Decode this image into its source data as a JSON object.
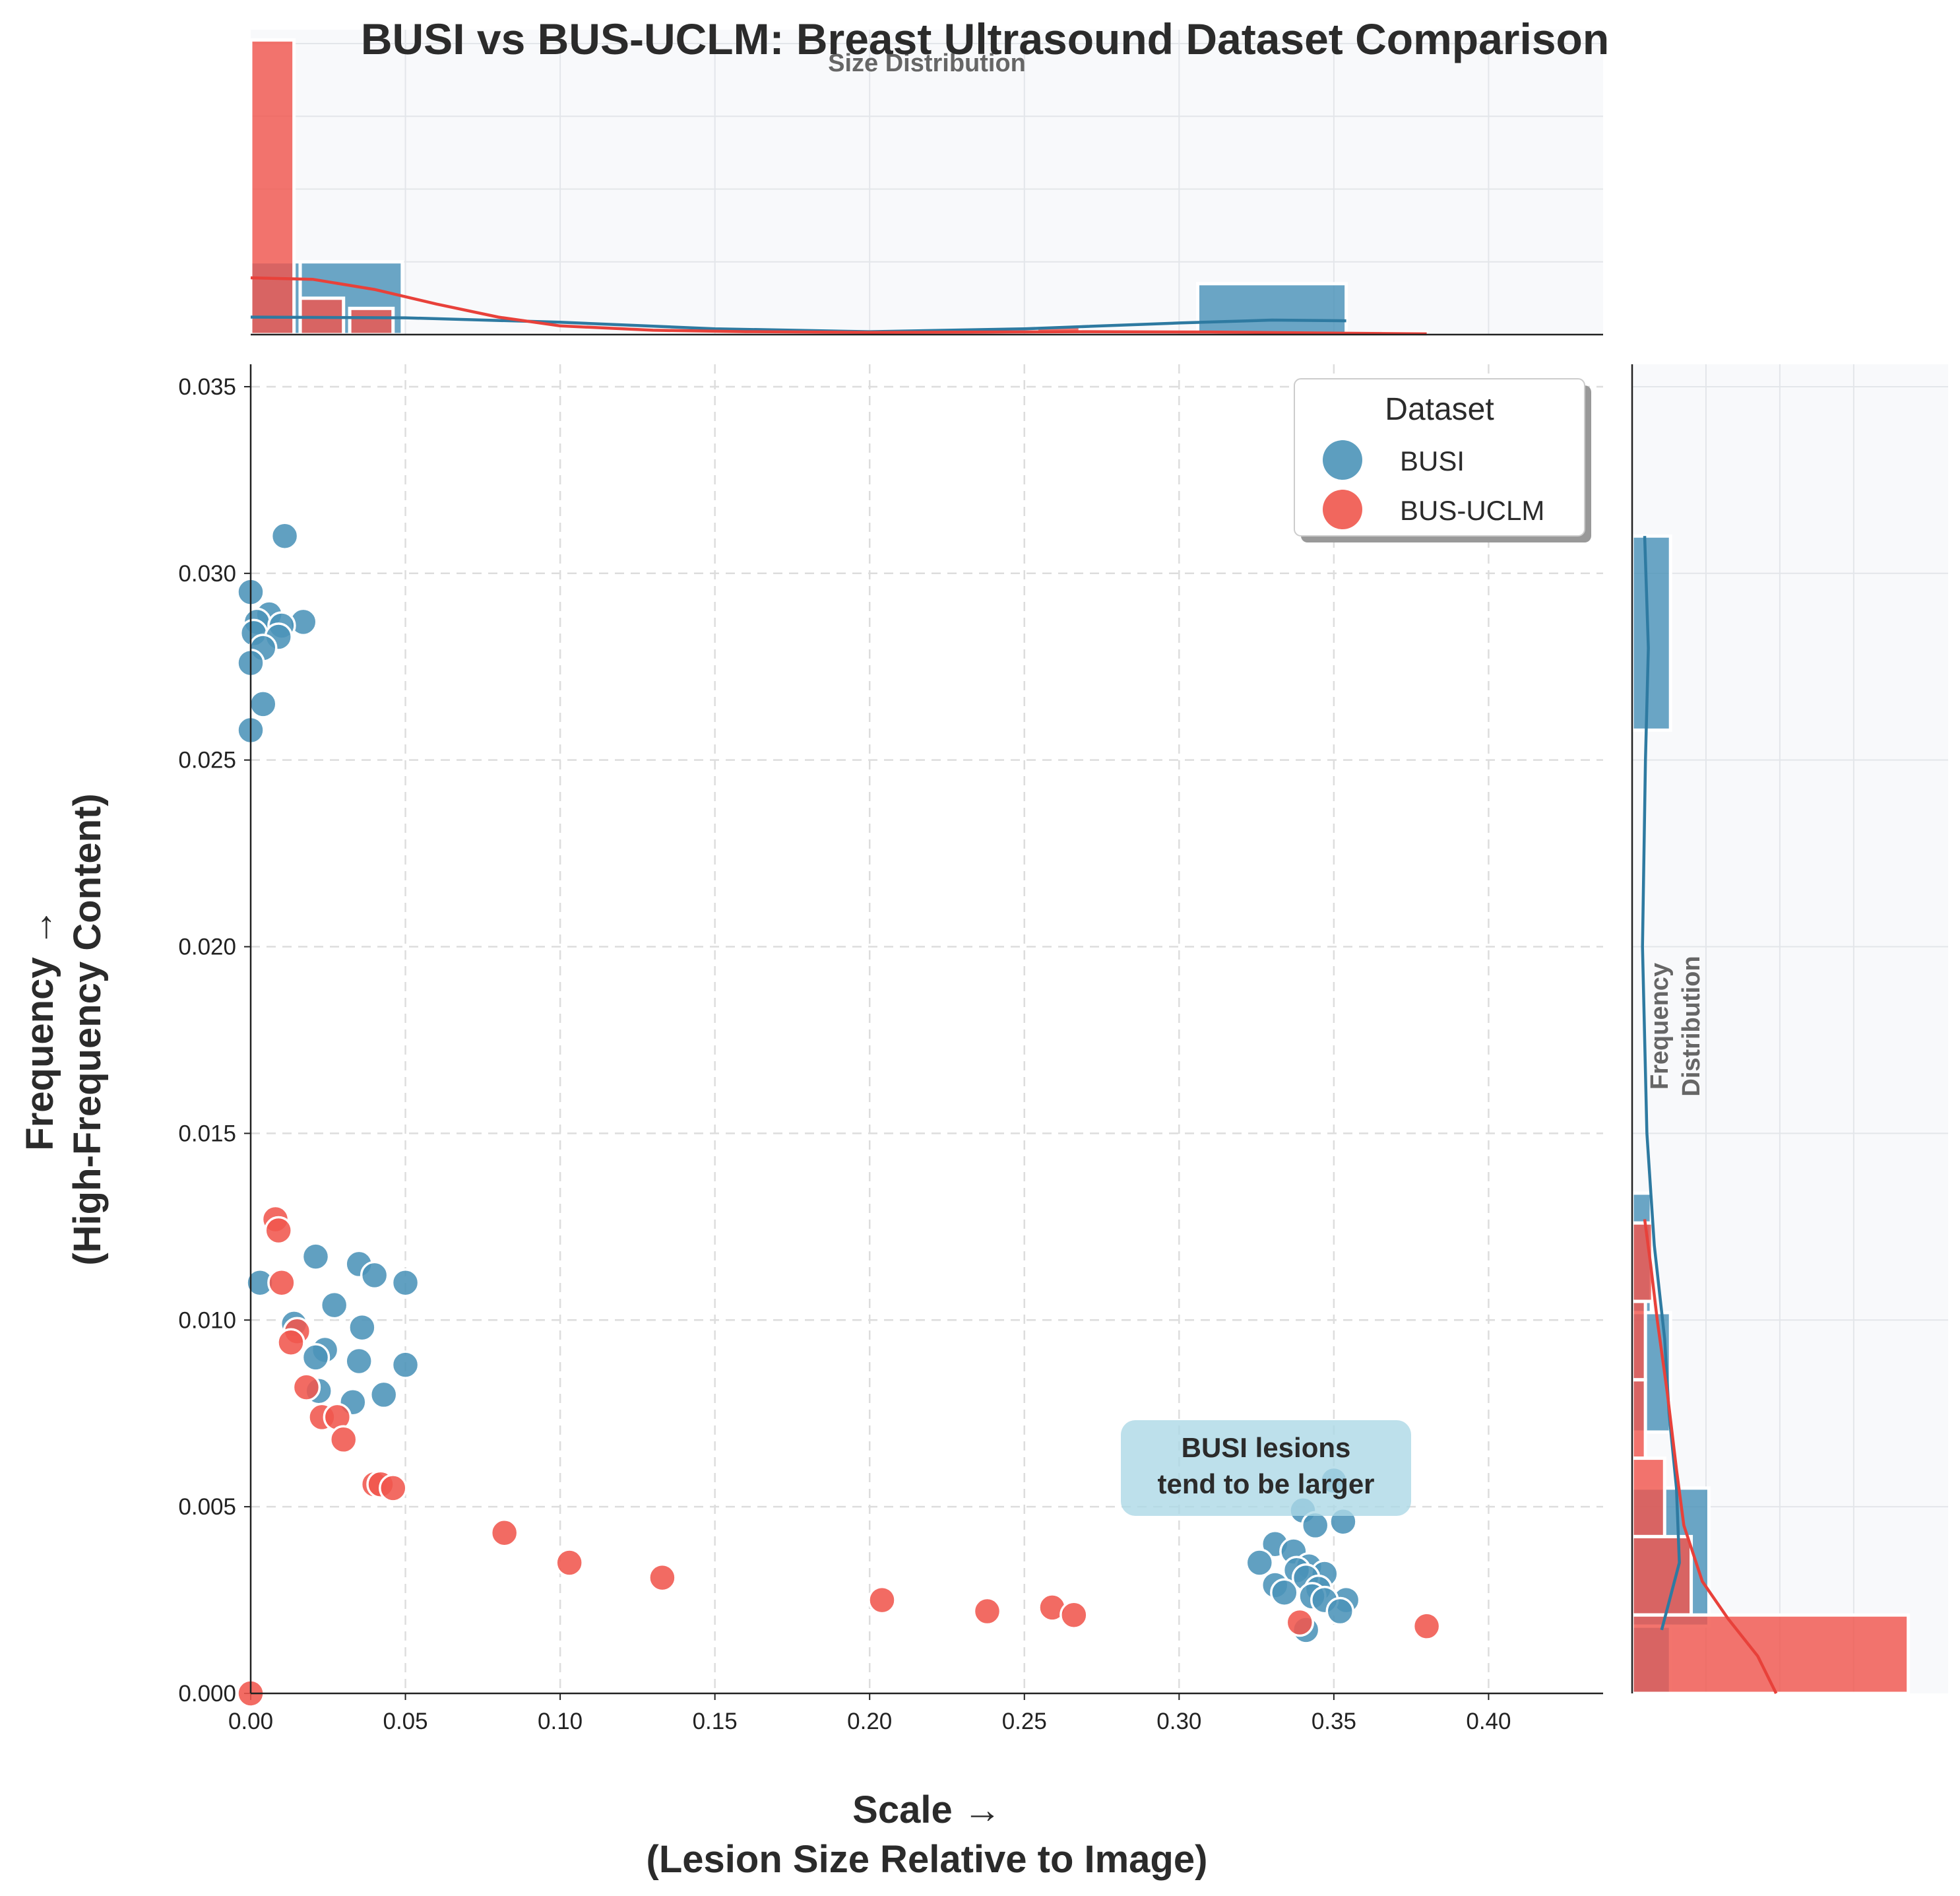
{
  "chart_data": {
    "type": "scatter",
    "title": "BUSI vs BUS-UCLM: Breast Ultrasound Dataset Comparison",
    "xlabel_line1": "Scale →",
    "xlabel_line2": "(Lesion Size Relative to Image)",
    "ylabel_line1": "Frequency →",
    "ylabel_line2": "(High-Frequency Content)",
    "xlim": [
      0,
      0.437
    ],
    "ylim": [
      0,
      0.0356
    ],
    "x_ticks": [
      "0.00",
      "0.05",
      "0.10",
      "0.15",
      "0.20",
      "0.25",
      "0.30",
      "0.35",
      "0.40"
    ],
    "x_tick_values": [
      0,
      0.05,
      0.1,
      0.15,
      0.2,
      0.25,
      0.3,
      0.35,
      0.4
    ],
    "y_ticks": [
      "0.000",
      "0.005",
      "0.010",
      "0.015",
      "0.020",
      "0.025",
      "0.030",
      "0.035"
    ],
    "y_tick_values": [
      0,
      0.005,
      0.01,
      0.015,
      0.02,
      0.025,
      0.03,
      0.035
    ],
    "grid": true,
    "legend": {
      "title": "Dataset",
      "placement": "top-right",
      "entries": [
        "BUSI",
        "BUS-UCLM"
      ]
    },
    "annotation": {
      "line1": "BUSI lesions",
      "line2": "tend to be larger",
      "x": 0.328,
      "y": 0.00605
    },
    "top_panel_title": "Size Distribution",
    "right_panel_title_line1": "Frequency",
    "right_panel_title_line2": "Distribution",
    "series": [
      {
        "name": "BUSI",
        "color": "#4b93b8",
        "edge": "#2e7aa1",
        "points": [
          [
            0.011,
            0.031
          ],
          [
            0.0,
            0.0295
          ],
          [
            0.006,
            0.0289
          ],
          [
            0.017,
            0.0287
          ],
          [
            0.002,
            0.0287
          ],
          [
            0.01,
            0.0286
          ],
          [
            0.001,
            0.0284
          ],
          [
            0.009,
            0.0283
          ],
          [
            0.004,
            0.028
          ],
          [
            0.0,
            0.0276
          ],
          [
            0.004,
            0.0265
          ],
          [
            0.0,
            0.0258
          ],
          [
            0.021,
            0.0117
          ],
          [
            0.035,
            0.0115
          ],
          [
            0.04,
            0.0112
          ],
          [
            0.003,
            0.011
          ],
          [
            0.05,
            0.011
          ],
          [
            0.027,
            0.0104
          ],
          [
            0.014,
            0.0099
          ],
          [
            0.036,
            0.0098
          ],
          [
            0.024,
            0.0092
          ],
          [
            0.021,
            0.009
          ],
          [
            0.035,
            0.0089
          ],
          [
            0.05,
            0.0088
          ],
          [
            0.022,
            0.0081
          ],
          [
            0.043,
            0.008
          ],
          [
            0.033,
            0.0078
          ],
          [
            0.35,
            0.0057
          ],
          [
            0.34,
            0.0049
          ],
          [
            0.353,
            0.0046
          ],
          [
            0.344,
            0.0045
          ],
          [
            0.331,
            0.004
          ],
          [
            0.337,
            0.0038
          ],
          [
            0.326,
            0.0035
          ],
          [
            0.342,
            0.0034
          ],
          [
            0.338,
            0.0033
          ],
          [
            0.347,
            0.0032
          ],
          [
            0.341,
            0.0031
          ],
          [
            0.331,
            0.0029
          ],
          [
            0.345,
            0.0028
          ],
          [
            0.334,
            0.0027
          ],
          [
            0.343,
            0.0026
          ],
          [
            0.354,
            0.0025
          ],
          [
            0.347,
            0.0025
          ],
          [
            0.352,
            0.0022
          ],
          [
            0.341,
            0.0017
          ]
        ]
      },
      {
        "name": "BUS-UCLM",
        "color": "#f0564d",
        "edge": "#dc3c33",
        "points": [
          [
            0.008,
            0.0127
          ],
          [
            0.009,
            0.0124
          ],
          [
            0.01,
            0.011
          ],
          [
            0.015,
            0.0097
          ],
          [
            0.013,
            0.0094
          ],
          [
            0.018,
            0.0082
          ],
          [
            0.023,
            0.0074
          ],
          [
            0.028,
            0.0074
          ],
          [
            0.03,
            0.0068
          ],
          [
            0.04,
            0.0056
          ],
          [
            0.042,
            0.0056
          ],
          [
            0.046,
            0.0055
          ],
          [
            0.082,
            0.0043
          ],
          [
            0.103,
            0.0035
          ],
          [
            0.133,
            0.0031
          ],
          [
            0.204,
            0.0025
          ],
          [
            0.238,
            0.0022
          ],
          [
            0.259,
            0.0023
          ],
          [
            0.266,
            0.0021
          ],
          [
            0.339,
            0.0019
          ],
          [
            0.38,
            0.0018
          ],
          [
            0.0,
            0.0
          ]
        ]
      }
    ],
    "x_histogram": {
      "BUSI": [
        {
          "x0": 0.0,
          "x1": 0.016,
          "count": 1.0
        },
        {
          "x0": 0.016,
          "x1": 0.049,
          "count": 1.0
        },
        {
          "x0": 0.306,
          "x1": 0.354,
          "count": 0.7
        }
      ],
      "BUS-UCLM": [
        {
          "x0": 0.0,
          "x1": 0.014,
          "count": 4.05
        },
        {
          "x0": 0.016,
          "x1": 0.03,
          "count": 0.5
        },
        {
          "x0": 0.032,
          "x1": 0.046,
          "count": 0.36
        },
        {
          "x0": 0.081,
          "x1": 0.095,
          "count": 0.015
        },
        {
          "x0": 0.095,
          "x1": 0.109,
          "count": 0.015
        },
        {
          "x0": 0.254,
          "x1": 0.268,
          "count": 0.12
        },
        {
          "x0": 0.366,
          "x1": 0.38,
          "count": 0.03
        }
      ]
    },
    "y_histogram": {
      "BUSI": [
        {
          "y0": 0.0258,
          "y1": 0.031,
          "count": 0.52
        },
        {
          "y0": 0.0102,
          "y1": 0.0134,
          "count": 0.26
        },
        {
          "y0": 0.007,
          "y1": 0.0102,
          "count": 0.52
        },
        {
          "y0": 0.0018,
          "y1": 0.0055,
          "count": 1.04
        },
        {
          "y0": 0.0,
          "y1": 0.0018,
          "count": 0.52
        }
      ],
      "BUS-UCLM": [
        {
          "y0": 0.0105,
          "y1": 0.0126,
          "count": 0.28
        },
        {
          "y0": 0.0084,
          "y1": 0.0105,
          "count": 0.18
        },
        {
          "y0": 0.0063,
          "y1": 0.0084,
          "count": 0.18
        },
        {
          "y0": 0.0042,
          "y1": 0.0063,
          "count": 0.44
        },
        {
          "y0": 0.0021,
          "y1": 0.0042,
          "count": 0.8
        },
        {
          "y0": 0.0,
          "y1": 0.0021,
          "count": 3.74
        }
      ]
    },
    "x_kde": {
      "BUSI": [
        [
          0.0,
          0.24
        ],
        [
          0.05,
          0.23
        ],
        [
          0.1,
          0.17
        ],
        [
          0.15,
          0.08
        ],
        [
          0.2,
          0.04
        ],
        [
          0.25,
          0.08
        ],
        [
          0.3,
          0.16
        ],
        [
          0.33,
          0.2
        ],
        [
          0.354,
          0.19
        ]
      ],
      "BUS-UCLM": [
        [
          0.0,
          0.78
        ],
        [
          0.02,
          0.76
        ],
        [
          0.04,
          0.62
        ],
        [
          0.06,
          0.42
        ],
        [
          0.08,
          0.24
        ],
        [
          0.1,
          0.12
        ],
        [
          0.13,
          0.06
        ],
        [
          0.16,
          0.04
        ],
        [
          0.2,
          0.03
        ],
        [
          0.24,
          0.035
        ],
        [
          0.27,
          0.04
        ],
        [
          0.31,
          0.035
        ],
        [
          0.35,
          0.02
        ],
        [
          0.38,
          0.01
        ]
      ]
    },
    "y_kde": {
      "BUSI": [
        [
          0.0017,
          0.4
        ],
        [
          0.0035,
          0.64
        ],
        [
          0.0055,
          0.6
        ],
        [
          0.0075,
          0.5
        ],
        [
          0.0095,
          0.44
        ],
        [
          0.012,
          0.3
        ],
        [
          0.015,
          0.2
        ],
        [
          0.02,
          0.14
        ],
        [
          0.025,
          0.18
        ],
        [
          0.028,
          0.22
        ],
        [
          0.031,
          0.17
        ]
      ],
      "BUS-UCLM": [
        [
          0.0,
          1.95
        ],
        [
          0.001,
          1.7
        ],
        [
          0.002,
          1.3
        ],
        [
          0.003,
          0.95
        ],
        [
          0.0045,
          0.7
        ],
        [
          0.006,
          0.6
        ],
        [
          0.008,
          0.48
        ],
        [
          0.01,
          0.34
        ],
        [
          0.0115,
          0.25
        ],
        [
          0.0127,
          0.17
        ]
      ]
    }
  }
}
